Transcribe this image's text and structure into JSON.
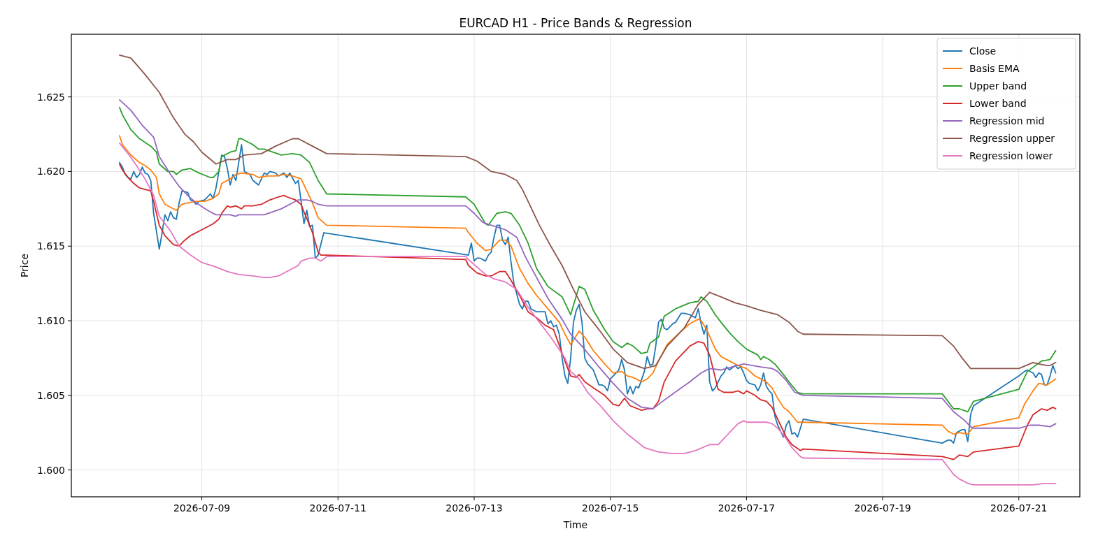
{
  "chart_data": {
    "type": "line",
    "title": "EURCAD H1 - Price Bands & Regression",
    "xlabel": "Time",
    "ylabel": "Price",
    "xlim": [
      "2026-07-07T02:00",
      "2026-07-21T21:30"
    ],
    "ylim": [
      1.5982,
      1.6292
    ],
    "xticks": [
      "2026-07-09",
      "2026-07-11",
      "2026-07-13",
      "2026-07-15",
      "2026-07-17",
      "2026-07-19",
      "2026-07-21"
    ],
    "yticks": [
      {
        "value": 1.6,
        "label": "1.600"
      },
      {
        "value": 1.605,
        "label": "1.605"
      },
      {
        "value": 1.61,
        "label": "1.610"
      },
      {
        "value": 1.615,
        "label": "1.615"
      },
      {
        "value": 1.62,
        "label": "1.620"
      },
      {
        "value": 1.625,
        "label": "1.625"
      }
    ],
    "grid": true,
    "legend": "top right",
    "line_style": "solid",
    "marker": "none",
    "series": [
      {
        "name": "Close",
        "color": "#1f77b4",
        "x": [
          "2026-07-07T19:00",
          "2026-07-07T20:00",
          "2026-07-07T21:00",
          "2026-07-07T22:00",
          "2026-07-07T23:00",
          "2026-07-08T00:00",
          "2026-07-08T01:00",
          "2026-07-08T02:00",
          "2026-07-08T03:00",
          "2026-07-08T04:00",
          "2026-07-08T05:00",
          "2026-07-08T06:00",
          "2026-07-08T07:00",
          "2026-07-08T08:00",
          "2026-07-08T09:00",
          "2026-07-08T10:00",
          "2026-07-08T11:00",
          "2026-07-08T12:00",
          "2026-07-08T13:00",
          "2026-07-08T14:00",
          "2026-07-08T15:00",
          "2026-07-08T16:00",
          "2026-07-08T17:00",
          "2026-07-08T19:00",
          "2026-07-08T20:00",
          "2026-07-08T21:00",
          "2026-07-08T22:00",
          "2026-07-08T23:00",
          "2026-07-09T01:00",
          "2026-07-09T03:00",
          "2026-07-09T04:00",
          "2026-07-09T05:00",
          "2026-07-09T06:00",
          "2026-07-09T07:00",
          "2026-07-09T08:00",
          "2026-07-09T09:00",
          "2026-07-09T10:00",
          "2026-07-09T11:00",
          "2026-07-09T12:00",
          "2026-07-09T13:00",
          "2026-07-09T14:00",
          "2026-07-09T15:00",
          "2026-07-09T16:00",
          "2026-07-09T17:00",
          "2026-07-09T18:00",
          "2026-07-09T20:00",
          "2026-07-09T22:00",
          "2026-07-09T23:00",
          "2026-07-10T00:00",
          "2026-07-10T02:00",
          "2026-07-10T03:00",
          "2026-07-10T05:00",
          "2026-07-10T06:00",
          "2026-07-10T07:00",
          "2026-07-10T09:00",
          "2026-07-10T10:00",
          "2026-07-10T11:00",
          "2026-07-10T12:00",
          "2026-07-10T13:00",
          "2026-07-10T14:00",
          "2026-07-10T15:00",
          "2026-07-10T16:00",
          "2026-07-10T17:00",
          "2026-07-10T19:00",
          "2026-07-12T22:00",
          "2026-07-12T23:00",
          "2026-07-13T00:00",
          "2026-07-13T01:00",
          "2026-07-13T02:00",
          "2026-07-13T04:00",
          "2026-07-13T05:00",
          "2026-07-13T06:00",
          "2026-07-13T07:00",
          "2026-07-13T08:00",
          "2026-07-13T09:00",
          "2026-07-13T10:00",
          "2026-07-13T11:00",
          "2026-07-13T12:00",
          "2026-07-13T13:00",
          "2026-07-13T14:00",
          "2026-07-13T16:00",
          "2026-07-13T17:00",
          "2026-07-13T18:00",
          "2026-07-13T19:00",
          "2026-07-13T20:00",
          "2026-07-13T22:00",
          "2026-07-14T01:00",
          "2026-07-14T02:00",
          "2026-07-14T03:00",
          "2026-07-14T04:00",
          "2026-07-14T05:00",
          "2026-07-14T06:00",
          "2026-07-14T07:00",
          "2026-07-14T08:00",
          "2026-07-14T09:00",
          "2026-07-14T10:00",
          "2026-07-14T11:00",
          "2026-07-14T12:00",
          "2026-07-14T13:00",
          "2026-07-14T14:00",
          "2026-07-14T15:00",
          "2026-07-14T16:00",
          "2026-07-14T18:00",
          "2026-07-14T19:00",
          "2026-07-14T20:00",
          "2026-07-14T21:00",
          "2026-07-14T22:00",
          "2026-07-14T23:00",
          "2026-07-15T00:00",
          "2026-07-15T01:00",
          "2026-07-15T03:00",
          "2026-07-15T04:00",
          "2026-07-15T05:00",
          "2026-07-15T06:00",
          "2026-07-15T07:00",
          "2026-07-15T08:00",
          "2026-07-15T09:00",
          "2026-07-15T10:00",
          "2026-07-15T12:00",
          "2026-07-15T13:00",
          "2026-07-15T14:00",
          "2026-07-15T15:00",
          "2026-07-15T16:00",
          "2026-07-15T17:00",
          "2026-07-15T18:00",
          "2026-07-15T19:00",
          "2026-07-15T20:00",
          "2026-07-15T22:00",
          "2026-07-15T23:00",
          "2026-07-16T01:00",
          "2026-07-16T02:00",
          "2026-07-16T04:00",
          "2026-07-16T05:00",
          "2026-07-16T06:00",
          "2026-07-16T07:00",
          "2026-07-16T08:00",
          "2026-07-16T09:00",
          "2026-07-16T10:00",
          "2026-07-16T11:00",
          "2026-07-16T12:00",
          "2026-07-16T13:00",
          "2026-07-16T15:00",
          "2026-07-16T16:00",
          "2026-07-16T17:00",
          "2026-07-16T18:00",
          "2026-07-16T20:00",
          "2026-07-16T21:00",
          "2026-07-16T22:00",
          "2026-07-16T23:00",
          "2026-07-17T00:00",
          "2026-07-17T01:00",
          "2026-07-17T03:00",
          "2026-07-17T04:00",
          "2026-07-17T05:00",
          "2026-07-17T06:00",
          "2026-07-17T07:00",
          "2026-07-17T08:00",
          "2026-07-17T09:00",
          "2026-07-17T10:00",
          "2026-07-17T11:00",
          "2026-07-17T12:00",
          "2026-07-17T13:00",
          "2026-07-17T14:00",
          "2026-07-17T15:00",
          "2026-07-17T16:00",
          "2026-07-17T17:00",
          "2026-07-17T18:00",
          "2026-07-17T20:00",
          "2026-07-19T21:00",
          "2026-07-19T23:00",
          "2026-07-20T00:00",
          "2026-07-20T01:00",
          "2026-07-20T02:00",
          "2026-07-20T04:00",
          "2026-07-20T05:00",
          "2026-07-20T06:00",
          "2026-07-20T07:00",
          "2026-07-20T08:00",
          "2026-07-21T00:00",
          "2026-07-21T02:00",
          "2026-07-21T03:00",
          "2026-07-21T05:00",
          "2026-07-21T06:00",
          "2026-07-21T07:00",
          "2026-07-21T08:00",
          "2026-07-21T09:00",
          "2026-07-21T10:00",
          "2026-07-21T11:00",
          "2026-07-21T12:00",
          "2026-07-21T13:00"
        ],
        "values": [
          1.6206,
          1.6203,
          1.6198,
          1.6196,
          1.6195,
          1.62,
          1.6196,
          1.6198,
          1.6203,
          1.6199,
          1.6198,
          1.6194,
          1.6172,
          1.616,
          1.6148,
          1.6159,
          1.6171,
          1.6167,
          1.6173,
          1.6169,
          1.6168,
          1.6179,
          1.6187,
          1.6186,
          1.6181,
          1.618,
          1.6178,
          1.618,
          1.6181,
          1.6185,
          1.6182,
          1.6189,
          1.62,
          1.6211,
          1.621,
          1.6202,
          1.6191,
          1.6198,
          1.6194,
          1.6206,
          1.6218,
          1.62,
          1.6199,
          1.6198,
          1.6194,
          1.6191,
          1.6199,
          1.6198,
          1.62,
          1.6199,
          1.6197,
          1.6199,
          1.6196,
          1.6199,
          1.6192,
          1.6194,
          1.618,
          1.6165,
          1.6174,
          1.6163,
          1.6164,
          1.6142,
          1.6144,
          1.6159,
          1.6144,
          1.6152,
          1.614,
          1.6142,
          1.6142,
          1.614,
          1.6144,
          1.6146,
          1.6156,
          1.6164,
          1.6164,
          1.6154,
          1.6151,
          1.6156,
          1.6139,
          1.6125,
          1.6111,
          1.6108,
          1.6113,
          1.6113,
          1.6108,
          1.6106,
          1.6106,
          1.6098,
          1.61,
          1.6096,
          1.6097,
          1.6091,
          1.6075,
          1.6063,
          1.6058,
          1.6075,
          1.6099,
          1.6107,
          1.6111,
          1.6099,
          1.6075,
          1.6071,
          1.6067,
          1.6062,
          1.6057,
          1.6057,
          1.6056,
          1.6053,
          1.6061,
          1.6063,
          1.6067,
          1.6074,
          1.6067,
          1.6051,
          1.6056,
          1.6051,
          1.6056,
          1.6055,
          1.6066,
          1.6076,
          1.607,
          1.6071,
          1.6083,
          1.6099,
          1.6101,
          1.6095,
          1.6094,
          1.6098,
          1.6099,
          1.6105,
          1.6105,
          1.6104,
          1.6103,
          1.6102,
          1.6108,
          1.6098,
          1.6091,
          1.6097,
          1.6059,
          1.6053,
          1.6055,
          1.6063,
          1.6065,
          1.6069,
          1.6067,
          1.607,
          1.6068,
          1.6069,
          1.6065,
          1.606,
          1.6058,
          1.6057,
          1.6053,
          1.6057,
          1.6065,
          1.6056,
          1.6053,
          1.6051,
          1.6036,
          1.603,
          1.6026,
          1.6022,
          1.603,
          1.6033,
          1.6024,
          1.6025,
          1.6022,
          1.6034,
          1.6018,
          1.602,
          1.602,
          1.6018,
          1.6025,
          1.6027,
          1.6027,
          1.6019,
          1.6037,
          1.6043,
          1.6063,
          1.6066,
          1.6067,
          1.6065,
          1.6062,
          1.6065,
          1.6064,
          1.6057,
          1.6057,
          1.6063,
          1.607,
          1.6065
        ]
      },
      {
        "name": "Basis EMA",
        "color": "#ff7f0e",
        "x": [
          "2026-07-07T19:00",
          "2026-07-07T20:00",
          "2026-07-07T23:00",
          "2026-07-08T02:00",
          "2026-07-08T04:00",
          "2026-07-08T06:00",
          "2026-07-08T08:00",
          "2026-07-08T09:00",
          "2026-07-08T11:00",
          "2026-07-08T13:00",
          "2026-07-08T15:00",
          "2026-07-08T17:00",
          "2026-07-08T19:00",
          "2026-07-08T22:00",
          "2026-07-09T01:00",
          "2026-07-09T04:00",
          "2026-07-09T06:00",
          "2026-07-09T07:00",
          "2026-07-09T10:00",
          "2026-07-09T12:00",
          "2026-07-09T14:00",
          "2026-07-09T18:00",
          "2026-07-09T20:00",
          "2026-07-09T23:00",
          "2026-07-10T02:00",
          "2026-07-10T05:00",
          "2026-07-10T08:00",
          "2026-07-10T11:00",
          "2026-07-10T13:00",
          "2026-07-10T15:00",
          "2026-07-10T17:00",
          "2026-07-10T20:00",
          "2026-07-12T21:00",
          "2026-07-12T22:00",
          "2026-07-13T01:00",
          "2026-07-13T04:00",
          "2026-07-13T06:00",
          "2026-07-13T09:00",
          "2026-07-13T11:00",
          "2026-07-13T13:00",
          "2026-07-13T16:00",
          "2026-07-13T19:00",
          "2026-07-13T22:00",
          "2026-07-14T02:00",
          "2026-07-14T06:00",
          "2026-07-14T08:00",
          "2026-07-14T10:00",
          "2026-07-14T13:00",
          "2026-07-14T15:00",
          "2026-07-14T18:00",
          "2026-07-14T22:00",
          "2026-07-15T01:00",
          "2026-07-15T04:00",
          "2026-07-15T06:00",
          "2026-07-15T08:00",
          "2026-07-15T11:00",
          "2026-07-15T13:00",
          "2026-07-15T15:00",
          "2026-07-15T17:00",
          "2026-07-15T20:00",
          "2026-07-16T01:00",
          "2026-07-16T04:00",
          "2026-07-16T07:00",
          "2026-07-16T08:00",
          "2026-07-16T10:00",
          "2026-07-16T13:00",
          "2026-07-16T15:00",
          "2026-07-16T18:00",
          "2026-07-16T21:00",
          "2026-07-17T00:00",
          "2026-07-17T03:00",
          "2026-07-17T05:00",
          "2026-07-17T07:00",
          "2026-07-17T09:00",
          "2026-07-17T11:00",
          "2026-07-17T13:00",
          "2026-07-17T15:00",
          "2026-07-17T18:00",
          "2026-07-17T20:00",
          "2026-07-19T21:00",
          "2026-07-19T23:00",
          "2026-07-20T01:00",
          "2026-07-20T03:00",
          "2026-07-20T06:00",
          "2026-07-20T08:00",
          "2026-07-21T00:00",
          "2026-07-21T02:00",
          "2026-07-21T05:00",
          "2026-07-21T07:00",
          "2026-07-21T10:00",
          "2026-07-21T13:00"
        ],
        "values": [
          1.6224,
          1.6218,
          1.6211,
          1.6206,
          1.6204,
          1.6201,
          1.6196,
          1.6185,
          1.6178,
          1.6176,
          1.6174,
          1.6178,
          1.6179,
          1.618,
          1.618,
          1.6182,
          1.6185,
          1.6192,
          1.6195,
          1.6198,
          1.6199,
          1.6198,
          1.6196,
          1.6197,
          1.6197,
          1.6198,
          1.6197,
          1.6195,
          1.6187,
          1.6179,
          1.6169,
          1.6164,
          1.6162,
          1.6159,
          1.6152,
          1.6147,
          1.6148,
          1.6154,
          1.6154,
          1.615,
          1.6135,
          1.6125,
          1.6117,
          1.6108,
          1.6099,
          1.6091,
          1.6084,
          1.6093,
          1.6089,
          1.608,
          1.6071,
          1.6065,
          1.6066,
          1.6063,
          1.6062,
          1.6059,
          1.6061,
          1.6065,
          1.6073,
          1.6084,
          1.6093,
          1.6098,
          1.6101,
          1.61,
          1.6094,
          1.6081,
          1.6076,
          1.6073,
          1.607,
          1.6068,
          1.6063,
          1.6061,
          1.6059,
          1.6055,
          1.6048,
          1.6042,
          1.6039,
          1.6032,
          1.6032,
          1.603,
          1.6026,
          1.6024,
          1.6025,
          1.6024,
          1.6029,
          1.6035,
          1.6044,
          1.6053,
          1.6058,
          1.6057,
          1.6061
        ]
      },
      {
        "name": "Upper band",
        "color": "#2ca02c",
        "x": [
          "2026-07-07T19:00",
          "2026-07-07T20:00",
          "2026-07-07T23:00",
          "2026-07-08T02:00",
          "2026-07-08T06:00",
          "2026-07-08T08:00",
          "2026-07-08T09:00",
          "2026-07-08T12:00",
          "2026-07-08T14:00",
          "2026-07-08T15:00",
          "2026-07-08T17:00",
          "2026-07-08T20:00",
          "2026-07-08T23:00",
          "2026-07-09T03:00",
          "2026-07-09T04:00",
          "2026-07-09T06:00",
          "2026-07-09T07:00",
          "2026-07-09T10:00",
          "2026-07-09T12:00",
          "2026-07-09T13:00",
          "2026-07-09T14:00",
          "2026-07-09T18:00",
          "2026-07-09T20:00",
          "2026-07-09T22:00",
          "2026-07-10T01:00",
          "2026-07-10T04:00",
          "2026-07-10T08:00",
          "2026-07-10T11:00",
          "2026-07-10T14:00",
          "2026-07-10T17:00",
          "2026-07-10T20:00",
          "2026-07-12T21:00",
          "2026-07-13T00:00",
          "2026-07-13T04:00",
          "2026-07-13T05:00",
          "2026-07-13T08:00",
          "2026-07-13T11:00",
          "2026-07-13T13:00",
          "2026-07-13T16:00",
          "2026-07-13T19:00",
          "2026-07-13T22:00",
          "2026-07-14T02:00",
          "2026-07-14T07:00",
          "2026-07-14T10:00",
          "2026-07-14T13:00",
          "2026-07-14T15:00",
          "2026-07-14T18:00",
          "2026-07-14T22:00",
          "2026-07-15T01:00",
          "2026-07-15T04:00",
          "2026-07-15T06:00",
          "2026-07-15T08:00",
          "2026-07-15T11:00",
          "2026-07-15T13:00",
          "2026-07-15T14:00",
          "2026-07-15T17:00",
          "2026-07-15T19:00",
          "2026-07-15T23:00",
          "2026-07-16T04:00",
          "2026-07-16T07:00",
          "2026-07-16T08:00",
          "2026-07-16T10:00",
          "2026-07-16T13:00",
          "2026-07-16T15:00",
          "2026-07-16T18:00",
          "2026-07-16T21:00",
          "2026-07-17T00:00",
          "2026-07-17T04:00",
          "2026-07-17T05:00",
          "2026-07-17T06:00",
          "2026-07-17T08:00",
          "2026-07-17T10:00",
          "2026-07-17T13:00",
          "2026-07-17T15:00",
          "2026-07-17T18:00",
          "2026-07-17T20:00",
          "2026-07-19T21:00",
          "2026-07-20T01:00",
          "2026-07-20T03:00",
          "2026-07-20T06:00",
          "2026-07-20T08:00",
          "2026-07-21T00:00",
          "2026-07-21T03:00",
          "2026-07-21T08:00",
          "2026-07-21T11:00",
          "2026-07-21T13:00"
        ],
        "values": [
          1.6243,
          1.6238,
          1.6228,
          1.6222,
          1.6217,
          1.6213,
          1.6205,
          1.62,
          1.62,
          1.6198,
          1.6201,
          1.6202,
          1.6199,
          1.6196,
          1.6196,
          1.62,
          1.621,
          1.6213,
          1.6214,
          1.6222,
          1.6222,
          1.6218,
          1.6215,
          1.6215,
          1.6213,
          1.6211,
          1.6212,
          1.6211,
          1.6206,
          1.6194,
          1.6185,
          1.6183,
          1.6178,
          1.6165,
          1.6164,
          1.6172,
          1.6173,
          1.6172,
          1.6164,
          1.6152,
          1.6135,
          1.6123,
          1.6116,
          1.6104,
          1.6123,
          1.6121,
          1.6107,
          1.6094,
          1.6086,
          1.6082,
          1.6085,
          1.6083,
          1.6078,
          1.6079,
          1.6085,
          1.6089,
          1.6103,
          1.6108,
          1.6112,
          1.6113,
          1.6116,
          1.6113,
          1.6104,
          1.6099,
          1.6092,
          1.6086,
          1.6081,
          1.6077,
          1.6074,
          1.6076,
          1.6074,
          1.6071,
          1.6064,
          1.6059,
          1.6052,
          1.6051,
          1.6051,
          1.6041,
          1.6041,
          1.6039,
          1.6046,
          1.6054,
          1.6066,
          1.6073,
          1.6074,
          1.608
        ]
      },
      {
        "name": "Lower band",
        "color": "#d62728",
        "x": [
          "2026-07-07T19:00",
          "2026-07-07T20:00",
          "2026-07-07T22:00",
          "2026-07-08T00:00",
          "2026-07-08T02:00",
          "2026-07-08T04:00",
          "2026-07-08T06:00",
          "2026-07-08T07:00",
          "2026-07-08T09:00",
          "2026-07-08T11:00",
          "2026-07-08T14:00",
          "2026-07-08T16:00",
          "2026-07-08T18:00",
          "2026-07-08T20:00",
          "2026-07-08T21:00",
          "2026-07-09T00:00",
          "2026-07-09T04:00",
          "2026-07-09T06:00",
          "2026-07-09T07:00",
          "2026-07-09T09:00",
          "2026-07-09T10:00",
          "2026-07-09T12:00",
          "2026-07-09T14:00",
          "2026-07-09T15:00",
          "2026-07-09T18:00",
          "2026-07-09T21:00",
          "2026-07-10T00:00",
          "2026-07-10T03:00",
          "2026-07-10T05:00",
          "2026-07-10T06:00",
          "2026-07-10T09:00",
          "2026-07-10T11:00",
          "2026-07-10T12:00",
          "2026-07-10T14:00",
          "2026-07-10T15:00",
          "2026-07-10T17:00",
          "2026-07-10T18:00",
          "2026-07-10T20:00",
          "2026-07-12T21:00",
          "2026-07-12T22:00",
          "2026-07-13T01:00",
          "2026-07-13T04:00",
          "2026-07-13T06:00",
          "2026-07-13T09:00",
          "2026-07-13T11:00",
          "2026-07-13T13:00",
          "2026-07-13T16:00",
          "2026-07-13T19:00",
          "2026-07-13T22:00",
          "2026-07-14T01:00",
          "2026-07-14T04:00",
          "2026-07-14T08:00",
          "2026-07-14T10:00",
          "2026-07-14T12:00",
          "2026-07-14T13:00",
          "2026-07-14T15:00",
          "2026-07-14T18:00",
          "2026-07-14T22:00",
          "2026-07-15T01:00",
          "2026-07-15T03:00",
          "2026-07-15T05:00",
          "2026-07-15T07:00",
          "2026-07-15T11:00",
          "2026-07-15T13:00",
          "2026-07-15T15:00",
          "2026-07-15T17:00",
          "2026-07-15T19:00",
          "2026-07-15T23:00",
          "2026-07-16T04:00",
          "2026-07-16T07:00",
          "2026-07-16T09:00",
          "2026-07-16T11:00",
          "2026-07-16T14:00",
          "2026-07-16T16:00",
          "2026-07-16T19:00",
          "2026-07-16T21:00",
          "2026-07-16T23:00",
          "2026-07-17T00:00",
          "2026-07-17T03:00",
          "2026-07-17T05:00",
          "2026-07-17T07:00",
          "2026-07-17T09:00",
          "2026-07-17T10:00",
          "2026-07-17T12:00",
          "2026-07-17T14:00",
          "2026-07-17T16:00",
          "2026-07-17T19:00",
          "2026-07-17T20:00",
          "2026-07-19T21:00",
          "2026-07-19T23:00",
          "2026-07-20T01:00",
          "2026-07-20T03:00",
          "2026-07-20T06:00",
          "2026-07-20T08:00",
          "2026-07-21T00:00",
          "2026-07-21T03:00",
          "2026-07-21T05:00",
          "2026-07-21T08:00",
          "2026-07-21T10:00",
          "2026-07-21T12:00",
          "2026-07-21T13:00"
        ],
        "values": [
          1.6205,
          1.6201,
          1.6196,
          1.6192,
          1.6189,
          1.6188,
          1.6187,
          1.618,
          1.6164,
          1.6157,
          1.6151,
          1.615,
          1.6154,
          1.6157,
          1.6158,
          1.6161,
          1.6165,
          1.6168,
          1.6172,
          1.6177,
          1.6176,
          1.6177,
          1.6175,
          1.6177,
          1.6177,
          1.6178,
          1.6181,
          1.6183,
          1.6184,
          1.6183,
          1.6181,
          1.6178,
          1.6173,
          1.6164,
          1.6159,
          1.6146,
          1.6144,
          1.6144,
          1.6141,
          1.6137,
          1.6132,
          1.613,
          1.613,
          1.6133,
          1.6133,
          1.6127,
          1.6117,
          1.6106,
          1.6102,
          1.6097,
          1.6094,
          1.6073,
          1.6063,
          1.6062,
          1.6064,
          1.6059,
          1.6055,
          1.605,
          1.6044,
          1.6043,
          1.6048,
          1.6043,
          1.604,
          1.6041,
          1.6041,
          1.6046,
          1.6059,
          1.6073,
          1.6083,
          1.6086,
          1.6085,
          1.6077,
          1.6054,
          1.6052,
          1.6052,
          1.6053,
          1.6051,
          1.6053,
          1.605,
          1.6047,
          1.6046,
          1.6042,
          1.6038,
          1.603,
          1.6022,
          1.6017,
          1.6013,
          1.6014,
          1.6009,
          1.6008,
          1.6007,
          1.601,
          1.6009,
          1.6012,
          1.6016,
          1.603,
          1.6037,
          1.6041,
          1.604,
          1.6042,
          1.6041
        ]
      },
      {
        "name": "Regression mid",
        "color": "#9467bd",
        "x": [
          "2026-07-07T19:00",
          "2026-07-07T23:00",
          "2026-07-08T03:00",
          "2026-07-08T07:00",
          "2026-07-08T09:00",
          "2026-07-08T13:00",
          "2026-07-08T16:00",
          "2026-07-08T19:00",
          "2026-07-08T22:00",
          "2026-07-09T02:00",
          "2026-07-09T05:00",
          "2026-07-09T07:00",
          "2026-07-09T10:00",
          "2026-07-09T12:00",
          "2026-07-09T13:00",
          "2026-07-09T18:00",
          "2026-07-09T22:00",
          "2026-07-10T01:00",
          "2026-07-10T04:00",
          "2026-07-10T08:00",
          "2026-07-10T10:00",
          "2026-07-10T13:00",
          "2026-07-10T15:00",
          "2026-07-10T17:00",
          "2026-07-10T20:00",
          "2026-07-12T21:00",
          "2026-07-13T00:00",
          "2026-07-13T03:00",
          "2026-07-13T06:00",
          "2026-07-13T11:00",
          "2026-07-13T15:00",
          "2026-07-13T18:00",
          "2026-07-13T22:00",
          "2026-07-14T02:00",
          "2026-07-14T07:00",
          "2026-07-14T10:00",
          "2026-07-14T14:00",
          "2026-07-14T20:00",
          "2026-07-15T01:00",
          "2026-07-15T06:00",
          "2026-07-15T11:00",
          "2026-07-15T15:00",
          "2026-07-15T17:00",
          "2026-07-15T22:00",
          "2026-07-16T04:00",
          "2026-07-16T08:00",
          "2026-07-16T11:00",
          "2026-07-16T15:00",
          "2026-07-16T19:00",
          "2026-07-16T23:00",
          "2026-07-17T05:00",
          "2026-07-17T09:00",
          "2026-07-17T11:00",
          "2026-07-17T14:00",
          "2026-07-17T17:00",
          "2026-07-17T20:00",
          "2026-07-19T21:00",
          "2026-07-20T01:00",
          "2026-07-20T05:00",
          "2026-07-20T07:00",
          "2026-07-20T08:00",
          "2026-07-21T00:00",
          "2026-07-21T04:00",
          "2026-07-21T07:00",
          "2026-07-21T11:00",
          "2026-07-21T13:00"
        ],
        "values": [
          1.6248,
          1.6241,
          1.6231,
          1.6223,
          1.621,
          1.6198,
          1.619,
          1.6184,
          1.6179,
          1.6174,
          1.6171,
          1.6171,
          1.6171,
          1.617,
          1.6171,
          1.6171,
          1.6171,
          1.6173,
          1.6175,
          1.6179,
          1.6181,
          1.6181,
          1.618,
          1.6178,
          1.6177,
          1.6177,
          1.6172,
          1.6166,
          1.6164,
          1.6161,
          1.6156,
          1.6143,
          1.6129,
          1.6115,
          1.6101,
          1.6091,
          1.6083,
          1.6069,
          1.6058,
          1.6048,
          1.6042,
          1.6041,
          1.6044,
          1.6051,
          1.6059,
          1.6065,
          1.6068,
          1.6067,
          1.6069,
          1.6071,
          1.6069,
          1.6068,
          1.6066,
          1.606,
          1.6052,
          1.605,
          1.6048,
          1.6039,
          1.6033,
          1.6029,
          1.6028,
          1.6028,
          1.603,
          1.603,
          1.6029,
          1.6031
        ]
      },
      {
        "name": "Regression upper",
        "color": "#8c564b",
        "x": [
          "2026-07-07T19:00",
          "2026-07-07T23:00",
          "2026-07-08T04:00",
          "2026-07-08T09:00",
          "2026-07-08T14:00",
          "2026-07-08T18:00",
          "2026-07-08T21:00",
          "2026-07-09T00:00",
          "2026-07-09T05:00",
          "2026-07-09T09:00",
          "2026-07-09T12:00",
          "2026-07-09T15:00",
          "2026-07-09T21:00",
          "2026-07-10T02:00",
          "2026-07-10T08:00",
          "2026-07-10T10:00",
          "2026-07-10T15:00",
          "2026-07-10T20:00",
          "2026-07-12T21:00",
          "2026-07-13T01:00",
          "2026-07-13T06:00",
          "2026-07-13T11:00",
          "2026-07-13T15:00",
          "2026-07-13T17:00",
          "2026-07-13T20:00",
          "2026-07-13T23:00",
          "2026-07-14T03:00",
          "2026-07-14T07:00",
          "2026-07-14T11:00",
          "2026-07-14T15:00",
          "2026-07-14T20:00",
          "2026-07-15T01:00",
          "2026-07-15T06:00",
          "2026-07-15T12:00",
          "2026-07-15T16:00",
          "2026-07-15T20:00",
          "2026-07-16T02:00",
          "2026-07-16T07:00",
          "2026-07-16T11:00",
          "2026-07-16T15:00",
          "2026-07-16T20:00",
          "2026-07-17T00:00",
          "2026-07-17T05:00",
          "2026-07-17T11:00",
          "2026-07-17T15:00",
          "2026-07-17T18:00",
          "2026-07-17T20:00",
          "2026-07-19T21:00",
          "2026-07-20T01:00",
          "2026-07-20T04:00",
          "2026-07-20T07:00",
          "2026-07-21T00:00",
          "2026-07-21T05:00",
          "2026-07-21T07:00",
          "2026-07-21T10:00",
          "2026-07-21T11:00",
          "2026-07-21T13:00"
        ],
        "values": [
          1.6278,
          1.6276,
          1.6265,
          1.6253,
          1.6236,
          1.6225,
          1.622,
          1.6213,
          1.6205,
          1.6208,
          1.6208,
          1.6211,
          1.6212,
          1.6217,
          1.6222,
          1.6222,
          1.6217,
          1.6212,
          1.621,
          1.6207,
          1.62,
          1.6198,
          1.6194,
          1.6188,
          1.6176,
          1.6164,
          1.615,
          1.6137,
          1.6121,
          1.6106,
          1.6094,
          1.6081,
          1.6072,
          1.6068,
          1.607,
          1.6083,
          1.6095,
          1.6111,
          1.6119,
          1.6116,
          1.6112,
          1.611,
          1.6107,
          1.6104,
          1.6099,
          1.6093,
          1.6091,
          1.609,
          1.6083,
          1.6075,
          1.6068,
          1.6068,
          1.6072,
          1.6071,
          1.607,
          1.607,
          1.6072
        ]
      },
      {
        "name": "Regression lower",
        "color": "#e377c2",
        "x": [
          "2026-07-07T19:00",
          "2026-07-07T22:00",
          "2026-07-08T01:00",
          "2026-07-08T04:00",
          "2026-07-08T07:00",
          "2026-07-08T09:00",
          "2026-07-08T13:00",
          "2026-07-08T16:00",
          "2026-07-08T20:00",
          "2026-07-09T00:00",
          "2026-07-09T05:00",
          "2026-07-09T09:00",
          "2026-07-09T13:00",
          "2026-07-09T18:00",
          "2026-07-09T22:00",
          "2026-07-10T00:00",
          "2026-07-10T03:00",
          "2026-07-10T06:00",
          "2026-07-10T10:00",
          "2026-07-10T11:00",
          "2026-07-10T14:00",
          "2026-07-10T16:00",
          "2026-07-10T17:00",
          "2026-07-10T18:00",
          "2026-07-10T20:00",
          "2026-07-12T21:00",
          "2026-07-12T22:00",
          "2026-07-13T01:00",
          "2026-07-13T04:00",
          "2026-07-13T07:00",
          "2026-07-13T11:00",
          "2026-07-13T15:00",
          "2026-07-13T19:00",
          "2026-07-13T23:00",
          "2026-07-14T03:00",
          "2026-07-14T08:00",
          "2026-07-14T10:00",
          "2026-07-14T13:00",
          "2026-07-14T16:00",
          "2026-07-14T21:00",
          "2026-07-15T01:00",
          "2026-07-15T06:00",
          "2026-07-15T12:00",
          "2026-07-15T17:00",
          "2026-07-15T22:00",
          "2026-07-16T02:00",
          "2026-07-16T06:00",
          "2026-07-16T11:00",
          "2026-07-16T14:00",
          "2026-07-16T18:00",
          "2026-07-16T21:00",
          "2026-07-16T23:00",
          "2026-07-17T00:00",
          "2026-07-17T05:00",
          "2026-07-17T07:00",
          "2026-07-17T09:00",
          "2026-07-17T11:00",
          "2026-07-17T14:00",
          "2026-07-17T16:00",
          "2026-07-17T19:00",
          "2026-07-17T20:00",
          "2026-07-19T21:00",
          "2026-07-19T23:00",
          "2026-07-20T01:00",
          "2026-07-20T03:00",
          "2026-07-20T06:00",
          "2026-07-20T08:00",
          "2026-07-21T00:00",
          "2026-07-21T05:00",
          "2026-07-21T09:00",
          "2026-07-21T13:00"
        ],
        "values": [
          1.6219,
          1.6212,
          1.6204,
          1.6195,
          1.6184,
          1.617,
          1.616,
          1.615,
          1.6144,
          1.6139,
          1.6136,
          1.6133,
          1.6131,
          1.613,
          1.6129,
          1.6129,
          1.613,
          1.6133,
          1.6137,
          1.614,
          1.6142,
          1.6142,
          1.6141,
          1.614,
          1.6143,
          1.6143,
          1.6141,
          1.6136,
          1.6131,
          1.6128,
          1.6126,
          1.6121,
          1.6109,
          1.6099,
          1.6089,
          1.6075,
          1.6066,
          1.6061,
          1.6052,
          1.6042,
          1.6033,
          1.6024,
          1.6015,
          1.6012,
          1.6011,
          1.6011,
          1.6013,
          1.6017,
          1.6017,
          1.6025,
          1.6031,
          1.6033,
          1.6032,
          1.6032,
          1.6032,
          1.6031,
          1.6028,
          1.6021,
          1.6015,
          1.6009,
          1.6008,
          1.6007,
          1.6002,
          1.5997,
          1.5994,
          1.5991,
          1.599,
          1.599,
          1.599,
          1.5991,
          1.5991
        ]
      }
    ]
  }
}
